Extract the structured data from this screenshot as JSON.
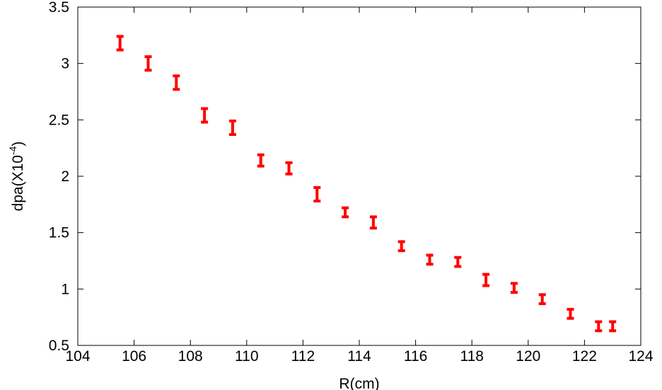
{
  "chart_data": {
    "type": "scatter",
    "xlabel": "R(cm)",
    "ylabel": {
      "text": "dpa(X10",
      "superscript": "-4",
      "close": ")"
    },
    "x": [
      105.5,
      106.5,
      107.5,
      108.5,
      109.5,
      110.5,
      111.5,
      112.5,
      113.5,
      114.5,
      115.5,
      116.5,
      117.5,
      118.5,
      119.5,
      120.5,
      121.5,
      122.5,
      123
    ],
    "series": [
      {
        "color": "#ff0000",
        "values": [
          3.18,
          3.0,
          2.83,
          2.54,
          2.43,
          2.14,
          2.07,
          1.84,
          1.68,
          1.59,
          1.38,
          1.26,
          1.24,
          1.08,
          1.01,
          0.91,
          0.78,
          0.67,
          0.67
        ],
        "errors": [
          0.06,
          0.06,
          0.06,
          0.06,
          0.06,
          0.05,
          0.05,
          0.06,
          0.04,
          0.05,
          0.04,
          0.04,
          0.04,
          0.05,
          0.04,
          0.04,
          0.04,
          0.04,
          0.04
        ]
      }
    ],
    "xlim": [
      104,
      124
    ],
    "xticks": [
      104,
      106,
      108,
      110,
      112,
      114,
      116,
      118,
      120,
      122,
      124
    ],
    "ylim": [
      0.5,
      3.5
    ],
    "yticks": [
      0.5,
      1,
      1.5,
      2,
      2.5,
      3,
      3.5
    ]
  }
}
